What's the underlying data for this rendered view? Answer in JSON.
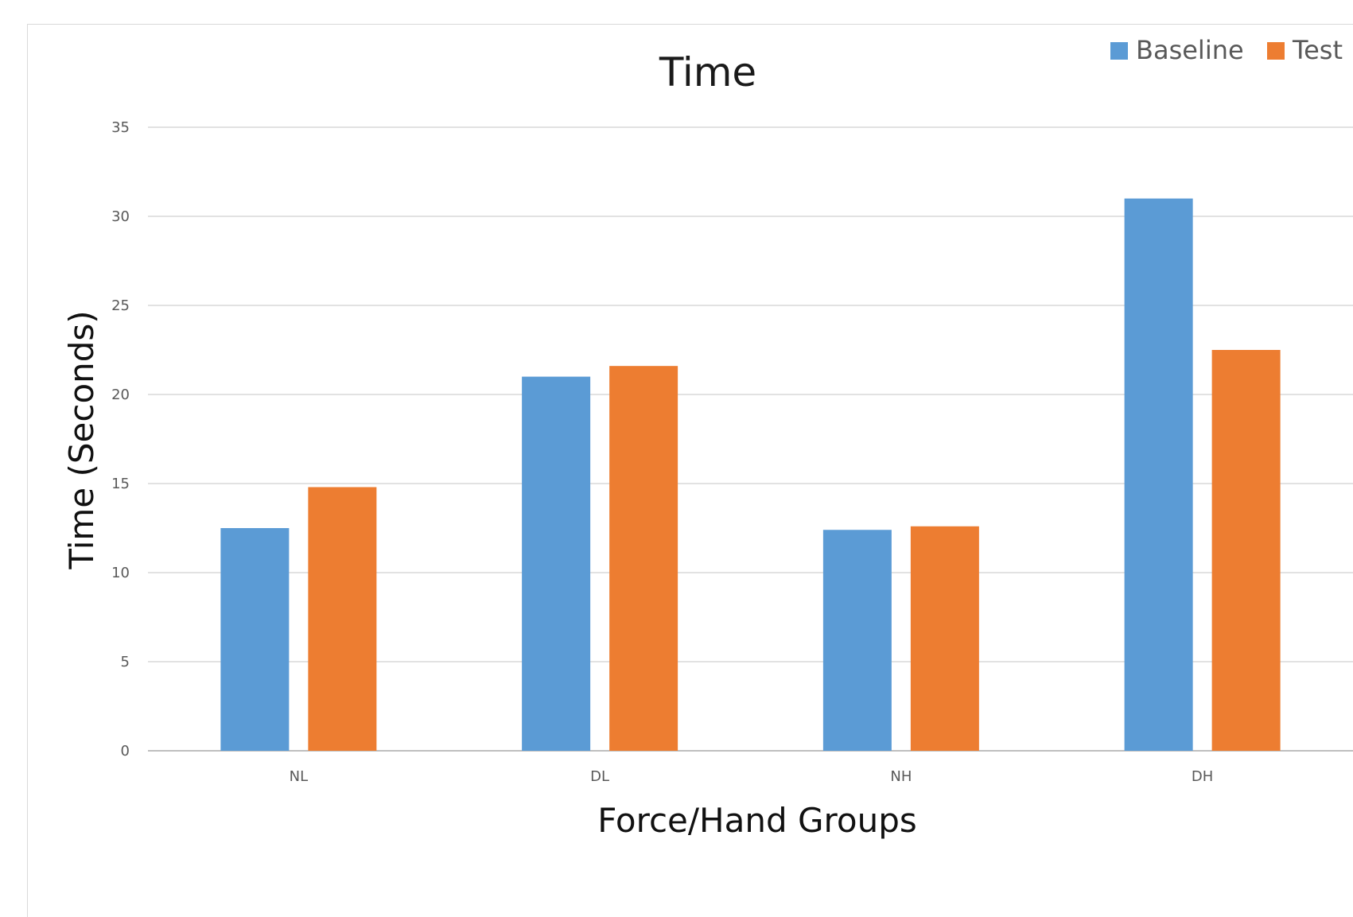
{
  "chart_data": {
    "type": "bar",
    "title": "Time",
    "xlabel": "Force/Hand Groups",
    "ylabel": "Time (Seconds)",
    "categories": [
      "NL",
      "DL",
      "NH",
      "DH"
    ],
    "series": [
      {
        "name": "Baseline",
        "color": "#5B9BD5",
        "values": [
          12.5,
          21.0,
          12.4,
          31.0
        ]
      },
      {
        "name": "Test",
        "color": "#ED7D31",
        "values": [
          14.8,
          21.6,
          12.6,
          22.5
        ]
      }
    ],
    "ylim": [
      0,
      35
    ],
    "yticks": [
      0,
      5,
      10,
      15,
      20,
      25,
      30,
      35
    ],
    "grid": true,
    "legend_position": "top-right"
  }
}
